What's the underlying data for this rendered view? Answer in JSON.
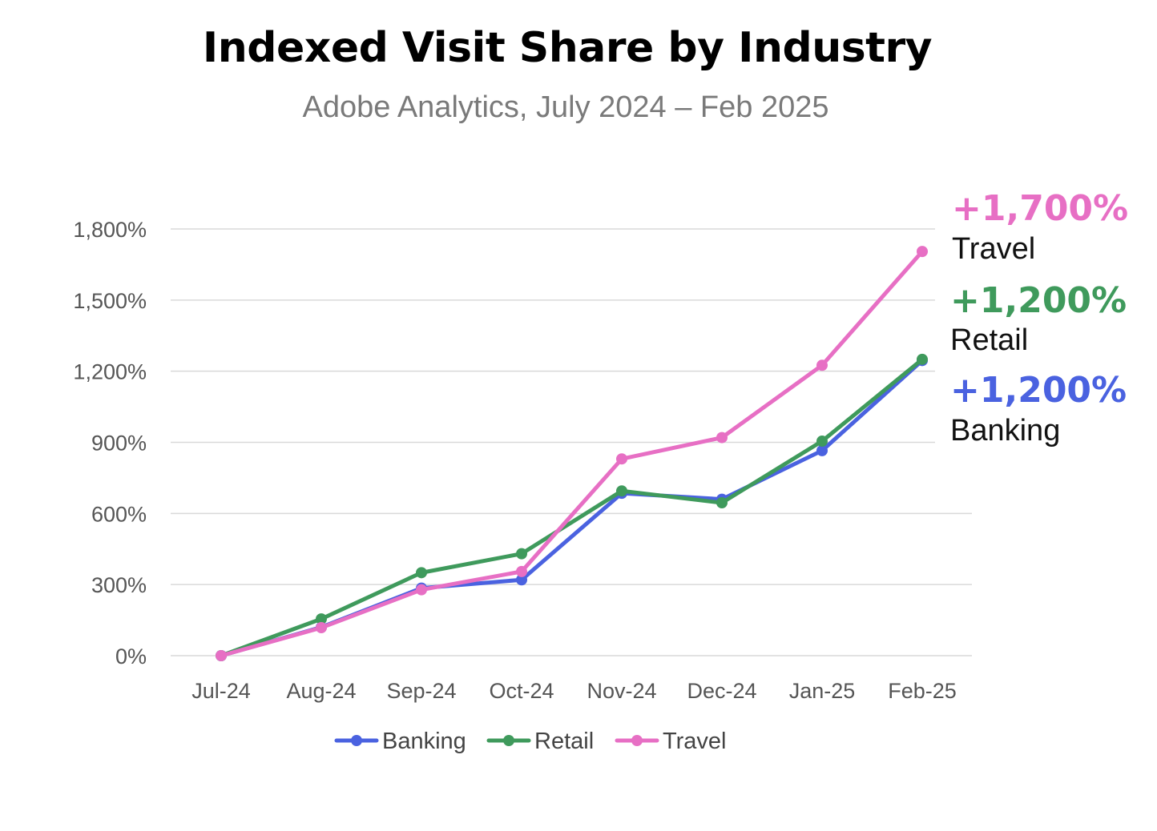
{
  "chart_data": {
    "type": "line",
    "title": "Indexed Visit Share by Industry",
    "subtitle": "Adobe Analytics, July 2024 – Feb 2025",
    "xlabel": "",
    "ylabel": "",
    "categories": [
      "Jul-24",
      "Aug-24",
      "Sep-24",
      "Oct-24",
      "Nov-24",
      "Dec-24",
      "Jan-25",
      "Feb-25"
    ],
    "ylim": [
      0,
      1800
    ],
    "yticks": [
      0,
      300,
      600,
      900,
      1200,
      1500,
      1800
    ],
    "ytick_labels": [
      "0%",
      "300%",
      "600%",
      "900%",
      "1,200%",
      "1,500%",
      "1,800%"
    ],
    "grid": "horizontal",
    "legend": "bottom",
    "series": [
      {
        "name": "Banking",
        "color": "#4a62e0",
        "values": [
          0,
          120,
          285,
          320,
          685,
          660,
          865,
          1245
        ]
      },
      {
        "name": "Retail",
        "color": "#3f9a5c",
        "values": [
          0,
          155,
          350,
          430,
          695,
          645,
          905,
          1250
        ]
      },
      {
        "name": "Travel",
        "color": "#e76fc4",
        "values": [
          0,
          118,
          278,
          355,
          830,
          920,
          1225,
          1705
        ]
      }
    ],
    "annotations": [
      {
        "value": "+1,700%",
        "name": "Travel",
        "color": "#e76fc4"
      },
      {
        "value": "+1,200%",
        "name": "Retail",
        "color": "#3f9a5c"
      },
      {
        "value": "+1,200%",
        "name": "Banking",
        "color": "#4a62e0"
      }
    ]
  }
}
